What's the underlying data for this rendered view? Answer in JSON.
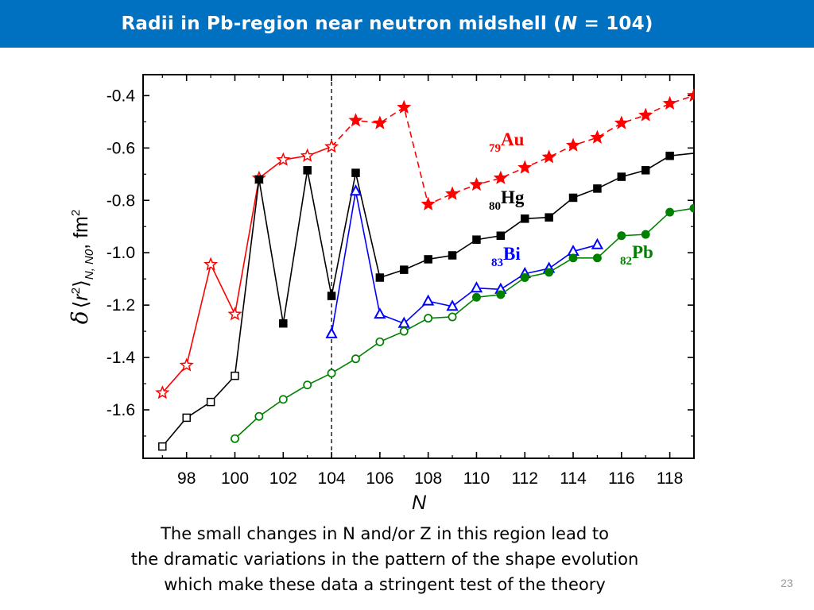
{
  "header": {
    "title_prefix": "Radii in Pb-region near neutron midshell (",
    "title_var": "N",
    "title_suffix": " = 104)"
  },
  "chart_data": {
    "type": "line",
    "xlabel": "N",
    "ylabel": "δ⟨r²⟩N, N0, fm²",
    "xlim": [
      96.2,
      119
    ],
    "ylim": [
      -1.785,
      -0.32
    ],
    "xticks": [
      "98",
      "100",
      "102",
      "104",
      "106",
      "108",
      "110",
      "112",
      "114",
      "116",
      "118"
    ],
    "yticks": [
      "-0.4",
      "-0.6",
      "-0.8",
      "-1.0",
      "-1.2",
      "-1.4",
      "-1.6"
    ],
    "reference_line_x": 104,
    "legend_placement": "inline labels near right end of each series",
    "series": [
      {
        "name": "Au",
        "label_z": "79",
        "label_el": "Au",
        "color": "#ff0000",
        "dash": "dashed-right",
        "points": [
          {
            "x": 97,
            "y": -1.535,
            "marker": "star-open"
          },
          {
            "x": 98,
            "y": -1.43,
            "marker": "star-open"
          },
          {
            "x": 99,
            "y": -1.045,
            "marker": "star-open"
          },
          {
            "x": 100,
            "y": -1.235,
            "marker": "star-open"
          },
          {
            "x": 101,
            "y": -0.715,
            "marker": "star-open"
          },
          {
            "x": 102,
            "y": -0.645,
            "marker": "star-open"
          },
          {
            "x": 103,
            "y": -0.63,
            "marker": "star-open"
          },
          {
            "x": 104,
            "y": -0.595,
            "marker": "star-open"
          },
          {
            "x": 105,
            "y": -0.495,
            "marker": "star-filled"
          },
          {
            "x": 106,
            "y": -0.505,
            "marker": "star-filled"
          },
          {
            "x": 107,
            "y": -0.445,
            "marker": "star-filled"
          },
          {
            "x": 108,
            "y": -0.815,
            "marker": "star-filled"
          },
          {
            "x": 109,
            "y": -0.775,
            "marker": "star-filled"
          },
          {
            "x": 110,
            "y": -0.74,
            "marker": "star-filled"
          },
          {
            "x": 111,
            "y": -0.715,
            "marker": "star-filled"
          },
          {
            "x": 112,
            "y": -0.675,
            "marker": "star-filled"
          },
          {
            "x": 113,
            "y": -0.635,
            "marker": "star-filled"
          },
          {
            "x": 114,
            "y": -0.59,
            "marker": "star-filled"
          },
          {
            "x": 115,
            "y": -0.56,
            "marker": "star-filled"
          },
          {
            "x": 116,
            "y": -0.505,
            "marker": "star-filled"
          },
          {
            "x": 117,
            "y": -0.475,
            "marker": "star-filled"
          },
          {
            "x": 118,
            "y": -0.43,
            "marker": "star-filled"
          },
          {
            "x": 119,
            "y": -0.4,
            "marker": "star-filled"
          }
        ]
      },
      {
        "name": "Hg",
        "label_z": "80",
        "label_el": "Hg",
        "color": "#000000",
        "dash": "solid",
        "points": [
          {
            "x": 97,
            "y": -1.74,
            "marker": "square-open"
          },
          {
            "x": 98,
            "y": -1.63,
            "marker": "square-open"
          },
          {
            "x": 99,
            "y": -1.57,
            "marker": "square-open"
          },
          {
            "x": 100,
            "y": -1.47,
            "marker": "square-open"
          },
          {
            "x": 101,
            "y": -0.72,
            "marker": "square-filled"
          },
          {
            "x": 102,
            "y": -1.27,
            "marker": "square-filled"
          },
          {
            "x": 103,
            "y": -0.685,
            "marker": "square-filled"
          },
          {
            "x": 104,
            "y": -1.165,
            "marker": "square-filled"
          },
          {
            "x": 105,
            "y": -0.695,
            "marker": "square-filled"
          },
          {
            "x": 106,
            "y": -1.095,
            "marker": "square-filled"
          },
          {
            "x": 107,
            "y": -1.065,
            "marker": "square-filled"
          },
          {
            "x": 108,
            "y": -1.025,
            "marker": "square-filled"
          },
          {
            "x": 109,
            "y": -1.01,
            "marker": "square-filled"
          },
          {
            "x": 110,
            "y": -0.95,
            "marker": "square-filled"
          },
          {
            "x": 111,
            "y": -0.935,
            "marker": "square-filled"
          },
          {
            "x": 112,
            "y": -0.87,
            "marker": "square-filled"
          },
          {
            "x": 113,
            "y": -0.865,
            "marker": "square-filled"
          },
          {
            "x": 114,
            "y": -0.79,
            "marker": "square-filled"
          },
          {
            "x": 115,
            "y": -0.755,
            "marker": "square-filled"
          },
          {
            "x": 116,
            "y": -0.71,
            "marker": "square-filled"
          },
          {
            "x": 117,
            "y": -0.685,
            "marker": "square-filled"
          },
          {
            "x": 118,
            "y": -0.63,
            "marker": "square-filled"
          },
          {
            "x": 119,
            "y": -0.62,
            "marker": "none"
          }
        ]
      },
      {
        "name": "Bi",
        "label_z": "83",
        "label_el": "Bi",
        "color": "#0000ff",
        "dash": "solid",
        "points": [
          {
            "x": 104,
            "y": -1.31,
            "marker": "triangle-open"
          },
          {
            "x": 105,
            "y": -0.765,
            "marker": "triangle-open"
          },
          {
            "x": 106,
            "y": -1.235,
            "marker": "triangle-open"
          },
          {
            "x": 107,
            "y": -1.27,
            "marker": "triangle-open"
          },
          {
            "x": 108,
            "y": -1.185,
            "marker": "triangle-open"
          },
          {
            "x": 109,
            "y": -1.205,
            "marker": "triangle-open"
          },
          {
            "x": 110,
            "y": -1.135,
            "marker": "triangle-open"
          },
          {
            "x": 111,
            "y": -1.14,
            "marker": "triangle-open"
          },
          {
            "x": 112,
            "y": -1.08,
            "marker": "triangle-open"
          },
          {
            "x": 113,
            "y": -1.06,
            "marker": "triangle-open"
          },
          {
            "x": 114,
            "y": -0.995,
            "marker": "triangle-open"
          },
          {
            "x": 115,
            "y": -0.97,
            "marker": "triangle-open"
          }
        ]
      },
      {
        "name": "Pb",
        "label_z": "82",
        "label_el": "Pb",
        "color": "#008000",
        "dash": "solid",
        "points": [
          {
            "x": 100,
            "y": -1.71,
            "marker": "circle-open"
          },
          {
            "x": 101,
            "y": -1.625,
            "marker": "circle-open"
          },
          {
            "x": 102,
            "y": -1.56,
            "marker": "circle-open"
          },
          {
            "x": 103,
            "y": -1.505,
            "marker": "circle-open"
          },
          {
            "x": 104,
            "y": -1.46,
            "marker": "circle-open"
          },
          {
            "x": 105,
            "y": -1.405,
            "marker": "circle-open"
          },
          {
            "x": 106,
            "y": -1.34,
            "marker": "circle-open"
          },
          {
            "x": 107,
            "y": -1.3,
            "marker": "circle-open"
          },
          {
            "x": 108,
            "y": -1.25,
            "marker": "circle-open"
          },
          {
            "x": 109,
            "y": -1.245,
            "marker": "circle-open"
          },
          {
            "x": 110,
            "y": -1.17,
            "marker": "circle-filled"
          },
          {
            "x": 111,
            "y": -1.16,
            "marker": "circle-filled"
          },
          {
            "x": 112,
            "y": -1.095,
            "marker": "circle-filled"
          },
          {
            "x": 113,
            "y": -1.075,
            "marker": "circle-filled"
          },
          {
            "x": 114,
            "y": -1.02,
            "marker": "circle-filled"
          },
          {
            "x": 115,
            "y": -1.02,
            "marker": "circle-filled"
          },
          {
            "x": 116,
            "y": -0.935,
            "marker": "circle-filled"
          },
          {
            "x": 117,
            "y": -0.93,
            "marker": "circle-filled"
          },
          {
            "x": 118,
            "y": -0.845,
            "marker": "circle-filled"
          },
          {
            "x": 119,
            "y": -0.83,
            "marker": "circle-filled"
          }
        ]
      }
    ]
  },
  "caption": {
    "line1": "The small changes in N and/or Z in this region lead to",
    "line2": "the dramatic variations in the pattern of the shape evolution",
    "line3": "which make these data a stringent test of the theory"
  },
  "page_number": "23"
}
